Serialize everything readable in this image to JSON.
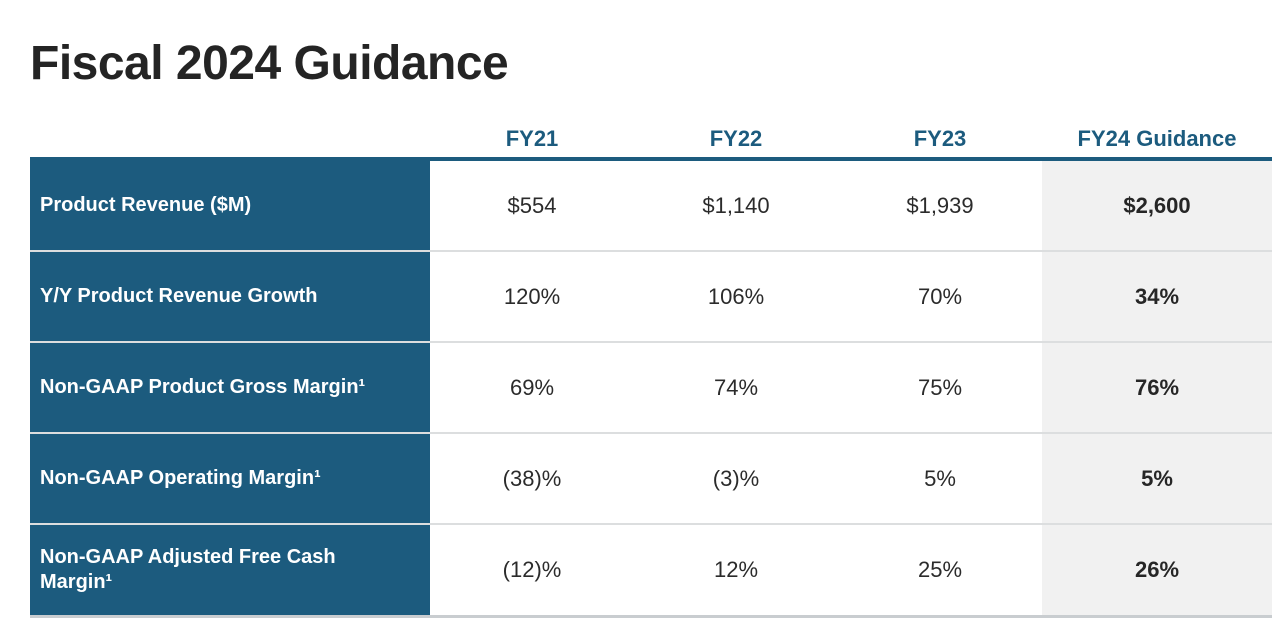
{
  "title": "Fiscal 2024 Guidance",
  "table": {
    "columns": [
      "FY21",
      "FY22",
      "FY23",
      "FY24 Guidance"
    ],
    "rows": [
      {
        "label": "Product Revenue ($M)",
        "values": [
          "$554",
          "$1,140",
          "$1,939",
          "$2,600"
        ]
      },
      {
        "label": "Y/Y Product Revenue Growth",
        "values": [
          "120%",
          "106%",
          "70%",
          "34%"
        ]
      },
      {
        "label": "Non-GAAP Product Gross Margin¹",
        "values": [
          "69%",
          "74%",
          "75%",
          "76%"
        ]
      },
      {
        "label": "Non-GAAP Operating Margin¹",
        "values": [
          "(38)%",
          "(3)%",
          "5%",
          "5%"
        ]
      },
      {
        "label": "Non-GAAP Adjusted Free Cash Margin¹",
        "values": [
          "(12)%",
          "12%",
          "25%",
          "26%"
        ]
      }
    ]
  },
  "colors": {
    "page_bg": "#FFFFFF",
    "accent_navy": "#1C5B7E",
    "label_bg": "#1C5B7E",
    "label_text": "#FFFFFF",
    "header_text": "#1C5B7E",
    "title_text": "#242424",
    "value_text": "#2B2B2B",
    "highlight_bg": "#F1F1F1",
    "row_divider": "#DCDEDF",
    "bottom_border": "#C9CDD0"
  },
  "chart_data": {
    "type": "table",
    "title": "Fiscal 2024 Guidance",
    "columns": [
      "",
      "FY21",
      "FY22",
      "FY23",
      "FY24 Guidance"
    ],
    "rows": [
      [
        "Product Revenue ($M)",
        "$554",
        "$1,140",
        "$1,939",
        "$2,600"
      ],
      [
        "Y/Y Product Revenue Growth",
        "120%",
        "106%",
        "70%",
        "34%"
      ],
      [
        "Non-GAAP Product Gross Margin¹",
        "69%",
        "74%",
        "75%",
        "76%"
      ],
      [
        "Non-GAAP Operating Margin¹",
        "(38)%",
        "(3)%",
        "5%",
        "5%"
      ],
      [
        "Non-GAAP Adjusted Free Cash Margin¹",
        "(12)%",
        "12%",
        "25%",
        "26%"
      ]
    ],
    "layout_hints": {
      "label_column_style": "dark-navy background, white bold text",
      "last_column_style": "light-gray highlight, bold values",
      "header_rule": "navy underline below column headers",
      "grid": "horizontal row dividers only"
    }
  }
}
